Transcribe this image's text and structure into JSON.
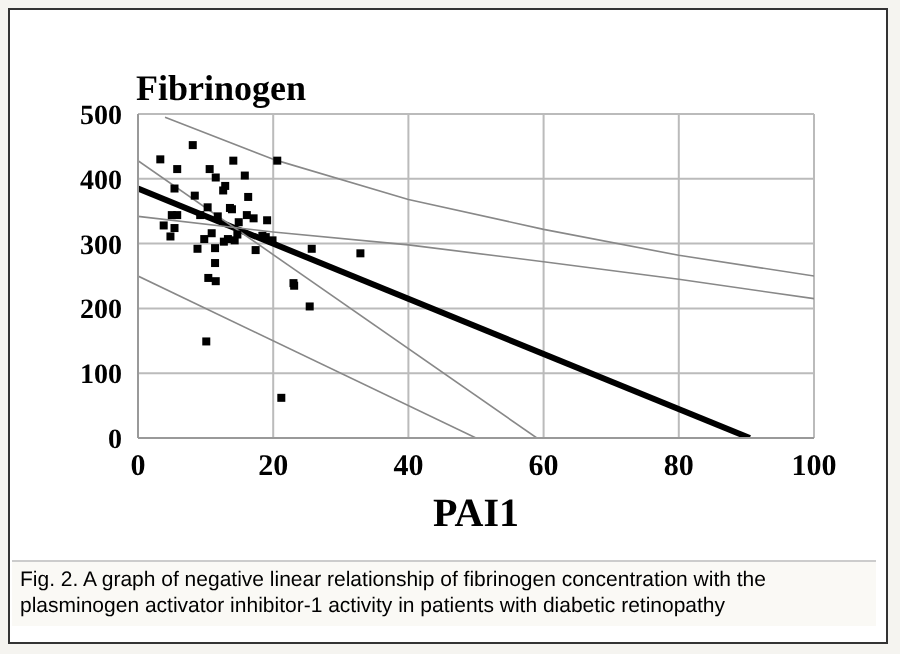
{
  "chart_data": {
    "type": "scatter",
    "ylabel": "Fibrinogen",
    "xlabel": "PAI1",
    "xlim": [
      0,
      100
    ],
    "xticks": [
      0,
      20,
      40,
      60,
      80,
      100
    ],
    "ylim": [
      0,
      500
    ],
    "yticks": [
      0,
      100,
      200,
      300,
      400,
      500
    ],
    "grid": true,
    "annotations": [
      "Fig. 2. A graph of negative linear relationship of fibrinogen concentration with the plasminogen activator inhibitor-1 activity in patients with diabetic retinopathy"
    ],
    "series": [
      {
        "marker": "square",
        "color": "#000000",
        "x": [
          3.3,
          8.1,
          5.8,
          10.6,
          14.1,
          20.6,
          11.5,
          15.8,
          12.6,
          12.9,
          5.4,
          8.4,
          16.3,
          10.3,
          13.6,
          13.9,
          5,
          5.8,
          9.2,
          11.8,
          16.1,
          17.1,
          19.1,
          14.9,
          3.8,
          5.4,
          4.8,
          9.8,
          10.9,
          12.7,
          13.3,
          14.3,
          14.7,
          18.4,
          18.9,
          19.9,
          8.8,
          11.4,
          17.4,
          25.7,
          32.9,
          11.4,
          10.4,
          11.5,
          23,
          23.1,
          25.4,
          10.1,
          21.2
        ],
        "values": [
          430,
          452,
          415,
          415,
          428,
          428,
          402,
          405,
          382,
          389,
          385,
          374,
          372,
          356,
          355,
          353,
          344,
          344,
          344,
          342,
          344,
          339,
          336,
          333,
          328,
          324,
          311,
          307,
          316,
          303,
          307,
          305,
          314,
          312,
          310,
          305,
          292,
          293,
          290,
          292,
          285,
          270,
          247,
          242,
          239,
          235,
          203,
          149,
          62
        ]
      },
      {
        "type": "line",
        "color": "#000000",
        "line_style": "solid",
        "x": [
          0,
          90.5
        ],
        "values": [
          385,
          0
        ]
      },
      {
        "type": "line",
        "color": "#888888",
        "line_style": "solid",
        "x": [
          0,
          59
        ],
        "values": [
          428,
          0
        ]
      },
      {
        "type": "line",
        "color": "#888888",
        "line_style": "solid",
        "x": [
          0,
          50
        ],
        "values": [
          250,
          0
        ]
      },
      {
        "type": "line",
        "color": "#888888",
        "line_style": "solid",
        "x": [
          0,
          20,
          40,
          60,
          80,
          100
        ],
        "values": [
          342,
          318,
          298,
          272,
          245,
          215
        ]
      },
      {
        "type": "line",
        "color": "#888888",
        "line_style": "solid",
        "x": [
          4,
          20,
          40,
          60,
          80,
          100
        ],
        "values": [
          495,
          430,
          368,
          322,
          282,
          250
        ]
      }
    ]
  }
}
